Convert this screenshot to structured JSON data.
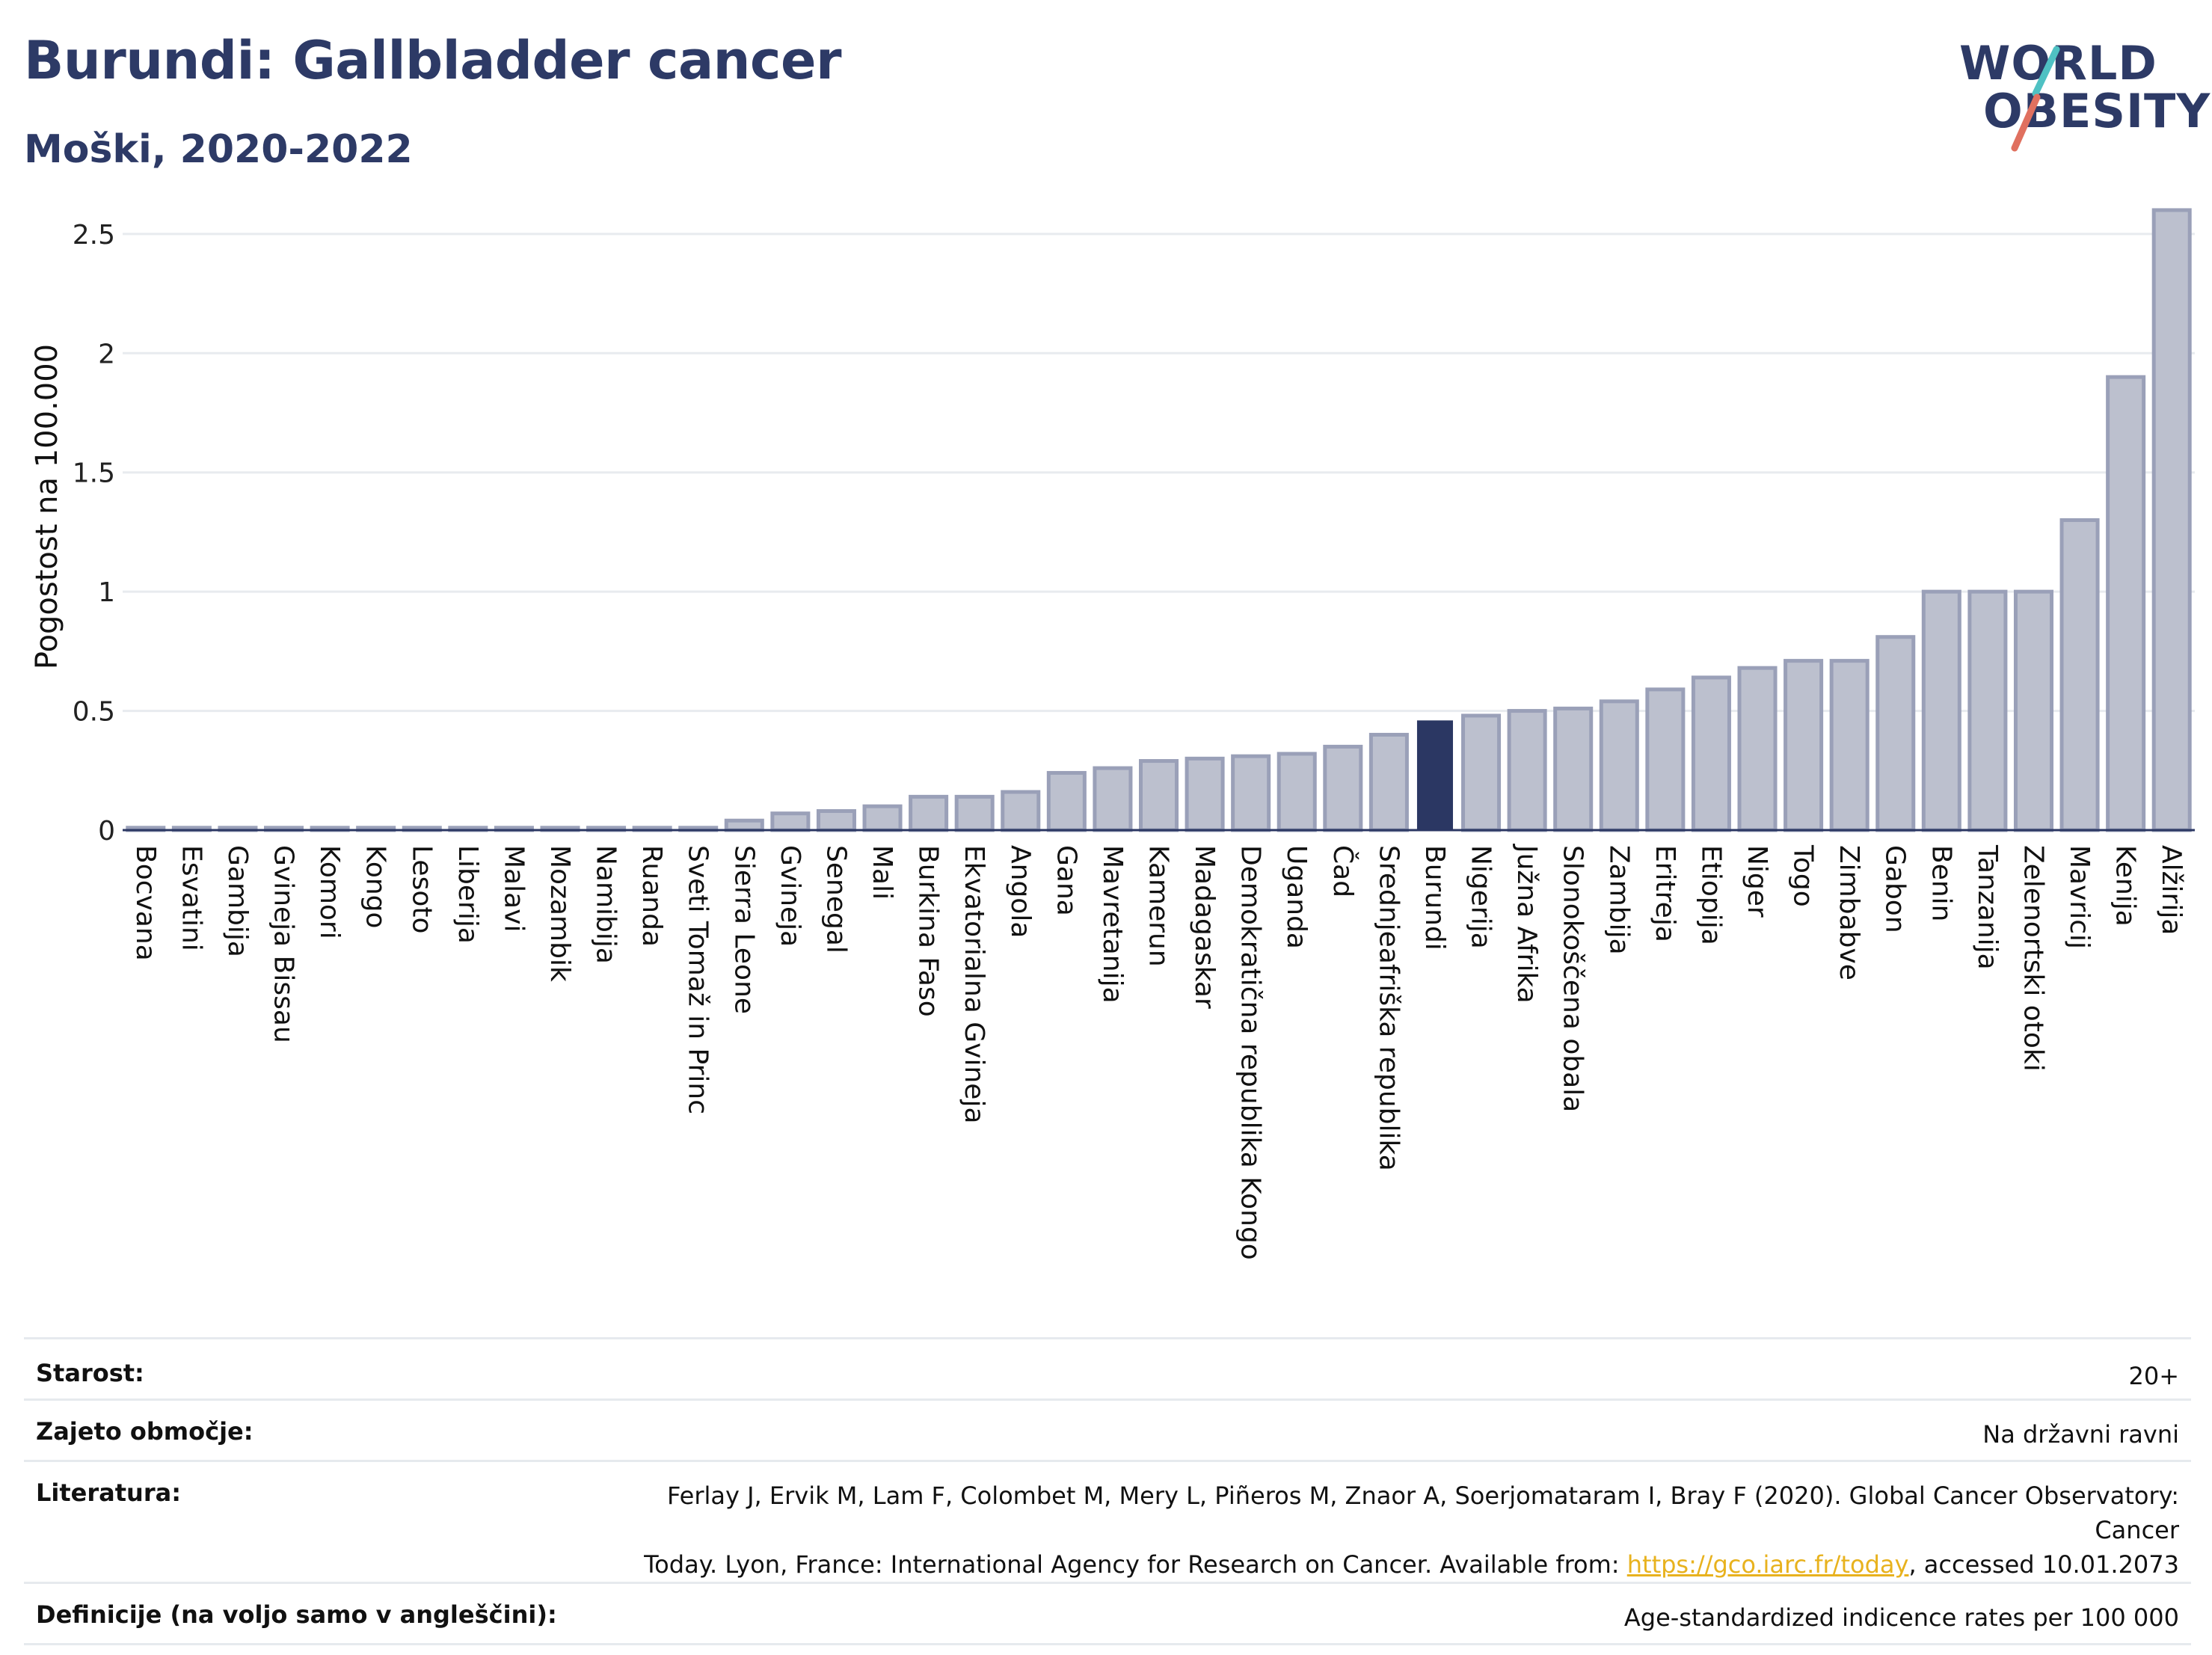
{
  "header": {
    "title": "Burundi: Gallbladder cancer",
    "subtitle": "Moški, 2020-2022"
  },
  "logo": {
    "line1": "WORLD",
    "line2": "OBESITY",
    "text_color": "#2d3a66",
    "stroke_teal": "#4fc1c3",
    "stroke_red": "#e0705f"
  },
  "chart_data": {
    "type": "bar",
    "ylabel": "Pogostost na 100.000",
    "ylim": [
      0,
      2.65
    ],
    "yticks": [
      0,
      0.5,
      1,
      1.5,
      2,
      2.5
    ],
    "ytick_labels": [
      "0",
      "0.5",
      "1",
      "1.5",
      "2",
      "2.5"
    ],
    "grid": true,
    "highlight_category": "Burundi",
    "colors": {
      "bar": "#bcc0ce",
      "bar_border": "#9aa0b8",
      "highlight": "#2b3763",
      "grid": "#e8ebef",
      "axis": "#2b3763"
    },
    "categories": [
      "Bocvana",
      "Esvatini",
      "Gambija",
      "Gvineja Bissau",
      "Komori",
      "Kongo",
      "Lesoto",
      "Liberija",
      "Malavi",
      "Mozambik",
      "Namibija",
      "Ruanda",
      "Sveti Tomaž in Princ",
      "Sierra Leone",
      "Gvineja",
      "Senegal",
      "Mali",
      "Burkina Faso",
      "Ekvatorialna Gvineja",
      "Angola",
      "Gana",
      "Mavretanija",
      "Kamerun",
      "Madagaskar",
      "Demokratična republika Kongo",
      "Uganda",
      "Čad",
      "Srednjeafriška republika",
      "Burundi",
      "Nigerija",
      "Južna Afrika",
      "Slonokoščena obala",
      "Zambija",
      "Eritreja",
      "Etiopija",
      "Niger",
      "Togo",
      "Zimbabve",
      "Gabon",
      "Benin",
      "Tanzanija",
      "Zelenortski otoki",
      "Mavricij",
      "Kenija",
      "Alžirija"
    ],
    "values": [
      0.01,
      0.01,
      0.01,
      0.01,
      0.01,
      0.01,
      0.01,
      0.01,
      0.01,
      0.01,
      0.01,
      0.01,
      0.01,
      0.04,
      0.07,
      0.08,
      0.1,
      0.14,
      0.14,
      0.16,
      0.24,
      0.26,
      0.29,
      0.3,
      0.31,
      0.32,
      0.35,
      0.4,
      0.46,
      0.48,
      0.5,
      0.51,
      0.54,
      0.59,
      0.64,
      0.68,
      0.71,
      0.71,
      0.81,
      1.0,
      1.0,
      1.0,
      1.3,
      1.9,
      2.6
    ]
  },
  "info": {
    "rows": [
      {
        "label": "Starost:",
        "value": "20+"
      },
      {
        "label": "Zajeto območje:",
        "value": "Na državni ravni"
      },
      {
        "label": "Literatura:",
        "value_line1": "Ferlay J, Ervik M, Lam F, Colombet M, Mery L, Piñeros M, Znaor A, Soerjomataram I, Bray F (2020). Global Cancer Observatory: Cancer",
        "value_line2_pre": "Today. Lyon, France: International Agency for Research on Cancer. Available from: ",
        "value_link": "https://gco.iarc.fr/today",
        "value_line2_post": ", accessed 10.01.2073"
      },
      {
        "label": "Definicije (na voljo samo v angleščini):",
        "value": "Age-standardized indicence rates per 100 000"
      }
    ]
  }
}
